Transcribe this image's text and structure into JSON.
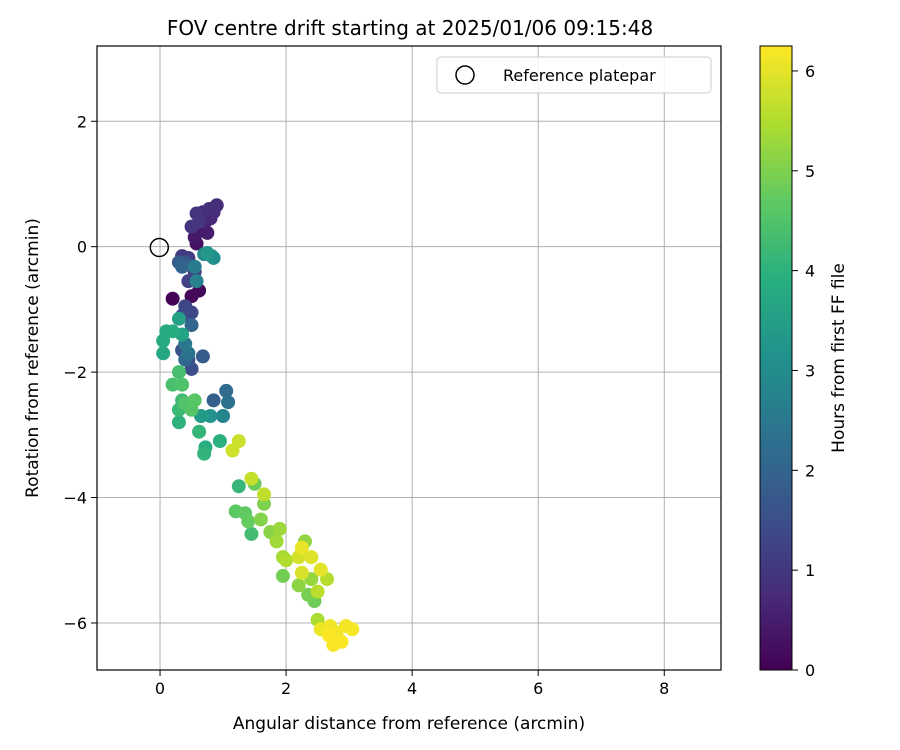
{
  "chart_data": {
    "type": "scatter",
    "title": "FOV centre drift starting at 2025/01/06 09:15:48",
    "xlabel": "Angular distance from reference (arcmin)",
    "ylabel": "Rotation from reference (arcmin)",
    "xlim": [
      -1.0,
      8.9
    ],
    "ylim": [
      -6.75,
      3.2
    ],
    "xticks": [
      0,
      2,
      4,
      6,
      8
    ],
    "yticks": [
      -6,
      -4,
      -2,
      0,
      2
    ],
    "grid": true,
    "legend": {
      "position": "top-right",
      "entries": [
        "Reference platepar"
      ]
    },
    "reference_point": {
      "x": 0,
      "y": 0,
      "label": "Reference platepar"
    },
    "colorbar": {
      "label": "Hours from first FF file",
      "colormap": "viridis",
      "range": [
        0,
        6.25
      ],
      "ticks": [
        0,
        1,
        2,
        3,
        4,
        5,
        6
      ]
    },
    "series": [
      {
        "points": [
          {
            "x": 0.2,
            "y": -0.83,
            "h": 0.05
          },
          {
            "x": 0.5,
            "y": -0.79,
            "h": 0.1
          },
          {
            "x": 0.62,
            "y": -0.7,
            "h": 0.15
          },
          {
            "x": 0.58,
            "y": 0.05,
            "h": 0.3
          },
          {
            "x": 0.55,
            "y": 0.15,
            "h": 0.4
          },
          {
            "x": 0.6,
            "y": 0.3,
            "h": 0.45
          },
          {
            "x": 0.75,
            "y": 0.22,
            "h": 0.5
          },
          {
            "x": 0.72,
            "y": 0.4,
            "h": 0.6
          },
          {
            "x": 0.68,
            "y": 0.55,
            "h": 0.65
          },
          {
            "x": 0.8,
            "y": 0.45,
            "h": 0.7
          },
          {
            "x": 0.85,
            "y": 0.55,
            "h": 0.75
          },
          {
            "x": 0.9,
            "y": 0.66,
            "h": 0.8
          },
          {
            "x": 0.78,
            "y": 0.6,
            "h": 0.85
          },
          {
            "x": 0.58,
            "y": 0.53,
            "h": 0.9
          },
          {
            "x": 0.5,
            "y": 0.32,
            "h": 0.95
          },
          {
            "x": 0.62,
            "y": 0.4,
            "h": 1.0
          },
          {
            "x": 0.35,
            "y": -0.15,
            "h": 1.05
          },
          {
            "x": 0.45,
            "y": -0.18,
            "h": 1.1
          },
          {
            "x": 0.55,
            "y": -0.4,
            "h": 1.15
          },
          {
            "x": 0.45,
            "y": -0.55,
            "h": 1.2
          },
          {
            "x": 0.4,
            "y": -0.95,
            "h": 1.3
          },
          {
            "x": 0.5,
            "y": -1.05,
            "h": 1.35
          },
          {
            "x": 0.35,
            "y": -1.1,
            "h": 1.4
          },
          {
            "x": 0.5,
            "y": -1.95,
            "h": 1.5
          },
          {
            "x": 0.45,
            "y": -1.8,
            "h": 1.55
          },
          {
            "x": 0.35,
            "y": -1.65,
            "h": 1.6
          },
          {
            "x": 0.4,
            "y": -0.25,
            "h": 1.7
          },
          {
            "x": 0.3,
            "y": -0.25,
            "h": 1.75
          },
          {
            "x": 0.68,
            "y": -1.75,
            "h": 1.8
          },
          {
            "x": 0.85,
            "y": -2.45,
            "h": 1.9
          },
          {
            "x": 0.35,
            "y": -0.32,
            "h": 2.0
          },
          {
            "x": 0.5,
            "y": -1.25,
            "h": 2.05
          },
          {
            "x": 0.4,
            "y": -1.8,
            "h": 2.1
          },
          {
            "x": 1.05,
            "y": -2.3,
            "h": 2.2
          },
          {
            "x": 1.08,
            "y": -2.48,
            "h": 2.3
          },
          {
            "x": 0.45,
            "y": -1.7,
            "h": 2.4
          },
          {
            "x": 0.4,
            "y": -1.55,
            "h": 2.5
          },
          {
            "x": 0.55,
            "y": -0.32,
            "h": 2.6
          },
          {
            "x": 0.58,
            "y": -0.55,
            "h": 2.7
          },
          {
            "x": 1.0,
            "y": -2.7,
            "h": 2.8
          },
          {
            "x": 0.7,
            "y": -0.12,
            "h": 2.9
          },
          {
            "x": 0.82,
            "y": -0.15,
            "h": 3.0
          },
          {
            "x": 0.85,
            "y": -0.18,
            "h": 3.1
          },
          {
            "x": 0.8,
            "y": -2.7,
            "h": 3.2
          },
          {
            "x": 0.75,
            "y": -0.1,
            "h": 3.3
          },
          {
            "x": 0.65,
            "y": -2.7,
            "h": 3.4
          },
          {
            "x": 0.3,
            "y": -1.15,
            "h": 3.5
          },
          {
            "x": 0.35,
            "y": -1.4,
            "h": 3.6
          },
          {
            "x": 0.05,
            "y": -1.7,
            "h": 3.7
          },
          {
            "x": 0.1,
            "y": -1.35,
            "h": 3.75
          },
          {
            "x": 0.05,
            "y": -1.5,
            "h": 3.8
          },
          {
            "x": 0.2,
            "y": -1.35,
            "h": 3.85
          },
          {
            "x": 0.72,
            "y": -3.2,
            "h": 3.9
          },
          {
            "x": 0.95,
            "y": -3.1,
            "h": 3.95
          },
          {
            "x": 0.3,
            "y": -2.8,
            "h": 4.0
          },
          {
            "x": 0.7,
            "y": -3.3,
            "h": 4.05
          },
          {
            "x": 0.62,
            "y": -2.95,
            "h": 4.1
          },
          {
            "x": 1.25,
            "y": -3.82,
            "h": 4.15
          },
          {
            "x": 0.3,
            "y": -2.6,
            "h": 4.2
          },
          {
            "x": 0.35,
            "y": -2.45,
            "h": 4.25
          },
          {
            "x": 1.45,
            "y": -4.58,
            "h": 4.3
          },
          {
            "x": 0.3,
            "y": -2.0,
            "h": 4.35
          },
          {
            "x": 0.2,
            "y": -2.2,
            "h": 4.4
          },
          {
            "x": 0.35,
            "y": -2.2,
            "h": 4.45
          },
          {
            "x": 0.4,
            "y": -2.5,
            "h": 4.5
          },
          {
            "x": 0.5,
            "y": -2.6,
            "h": 4.55
          },
          {
            "x": 0.55,
            "y": -2.45,
            "h": 4.6
          },
          {
            "x": 1.2,
            "y": -4.22,
            "h": 4.65
          },
          {
            "x": 1.35,
            "y": -4.25,
            "h": 4.7
          },
          {
            "x": 1.4,
            "y": -4.38,
            "h": 4.75
          },
          {
            "x": 1.5,
            "y": -3.78,
            "h": 4.8
          },
          {
            "x": 2.45,
            "y": -5.65,
            "h": 4.85
          },
          {
            "x": 1.95,
            "y": -5.25,
            "h": 4.9
          },
          {
            "x": 2.35,
            "y": -5.55,
            "h": 4.95
          },
          {
            "x": 1.65,
            "y": -4.1,
            "h": 5.0
          },
          {
            "x": 1.6,
            "y": -4.35,
            "h": 5.05
          },
          {
            "x": 1.75,
            "y": -4.55,
            "h": 5.1
          },
          {
            "x": 2.2,
            "y": -5.4,
            "h": 5.15
          },
          {
            "x": 2.3,
            "y": -4.7,
            "h": 5.2
          },
          {
            "x": 2.4,
            "y": -5.3,
            "h": 5.25
          },
          {
            "x": 1.9,
            "y": -4.5,
            "h": 5.3
          },
          {
            "x": 1.85,
            "y": -4.7,
            "h": 5.35
          },
          {
            "x": 1.95,
            "y": -4.95,
            "h": 5.4
          },
          {
            "x": 2.5,
            "y": -5.95,
            "h": 5.45
          },
          {
            "x": 2.0,
            "y": -5.0,
            "h": 5.5
          },
          {
            "x": 2.65,
            "y": -5.3,
            "h": 5.55
          },
          {
            "x": 2.5,
            "y": -5.5,
            "h": 5.6
          },
          {
            "x": 1.65,
            "y": -3.95,
            "h": 5.65
          },
          {
            "x": 1.45,
            "y": -3.7,
            "h": 5.7
          },
          {
            "x": 1.25,
            "y": -3.1,
            "h": 5.75
          },
          {
            "x": 1.15,
            "y": -3.25,
            "h": 5.8
          },
          {
            "x": 2.2,
            "y": -4.95,
            "h": 5.85
          },
          {
            "x": 2.25,
            "y": -5.2,
            "h": 5.9
          },
          {
            "x": 2.4,
            "y": -4.95,
            "h": 5.95
          },
          {
            "x": 2.55,
            "y": -5.15,
            "h": 6.0
          },
          {
            "x": 2.25,
            "y": -4.8,
            "h": 6.05
          },
          {
            "x": 2.55,
            "y": -6.1,
            "h": 6.1
          },
          {
            "x": 2.7,
            "y": -6.05,
            "h": 6.12
          },
          {
            "x": 2.8,
            "y": -6.15,
            "h": 6.14
          },
          {
            "x": 2.95,
            "y": -6.05,
            "h": 6.16
          },
          {
            "x": 3.05,
            "y": -6.1,
            "h": 6.18
          },
          {
            "x": 2.75,
            "y": -6.35,
            "h": 6.2
          },
          {
            "x": 2.88,
            "y": -6.3,
            "h": 6.22
          },
          {
            "x": 2.68,
            "y": -6.2,
            "h": 6.24
          }
        ]
      }
    ]
  }
}
